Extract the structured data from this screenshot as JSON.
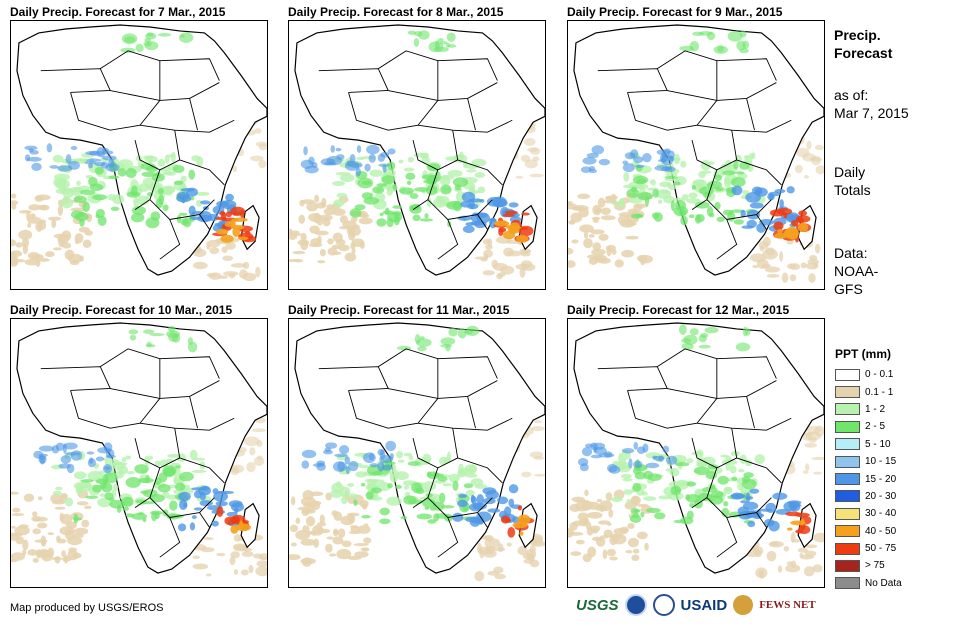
{
  "panels": [
    {
      "title": "Daily Precip. Forecast for 7 Mar., 2015"
    },
    {
      "title": "Daily Precip. Forecast for 8 Mar., 2015"
    },
    {
      "title": "Daily Precip. Forecast for 9 Mar., 2015"
    },
    {
      "title": "Daily Precip. Forecast for 10 Mar., 2015"
    },
    {
      "title": "Daily Precip. Forecast for 11 Mar., 2015"
    },
    {
      "title": "Daily Precip. Forecast for 12 Mar., 2015"
    }
  ],
  "sidebar": {
    "title_line1": "Precip.",
    "title_line2": "Forecast",
    "asof_label": "as of:",
    "asof_date": "Mar 7, 2015",
    "daily_line1": "Daily",
    "daily_line2": "Totals",
    "data_line1": "Data:",
    "data_line2": "NOAA-",
    "data_line3": "GFS"
  },
  "legend": {
    "title": "PPT (mm)",
    "items": [
      {
        "label": "0 - 0.1",
        "color": "#ffffff"
      },
      {
        "label": "0.1 - 1",
        "color": "#e6d2ad"
      },
      {
        "label": "1 - 2",
        "color": "#b7f2ae"
      },
      {
        "label": "2 - 5",
        "color": "#6ee66a"
      },
      {
        "label": "5 - 10",
        "color": "#b4eef6"
      },
      {
        "label": "10 - 15",
        "color": "#8fc4ef"
      },
      {
        "label": "15 - 20",
        "color": "#4d97e6"
      },
      {
        "label": "20 - 30",
        "color": "#1f5ee0"
      },
      {
        "label": "30 - 40",
        "color": "#f7e27a"
      },
      {
        "label": "40 - 50",
        "color": "#f4a21d"
      },
      {
        "label": "50 - 75",
        "color": "#ee3b12"
      },
      {
        "label": "> 75",
        "color": "#a8231c"
      },
      {
        "label": "No Data",
        "color": "#8c8c8c"
      }
    ]
  },
  "footer": {
    "credit": "Map produced by USGS/EROS",
    "logo_usgs": "USGS",
    "logo_usaid": "USAID",
    "logo_fews": "FEWS NET"
  }
}
